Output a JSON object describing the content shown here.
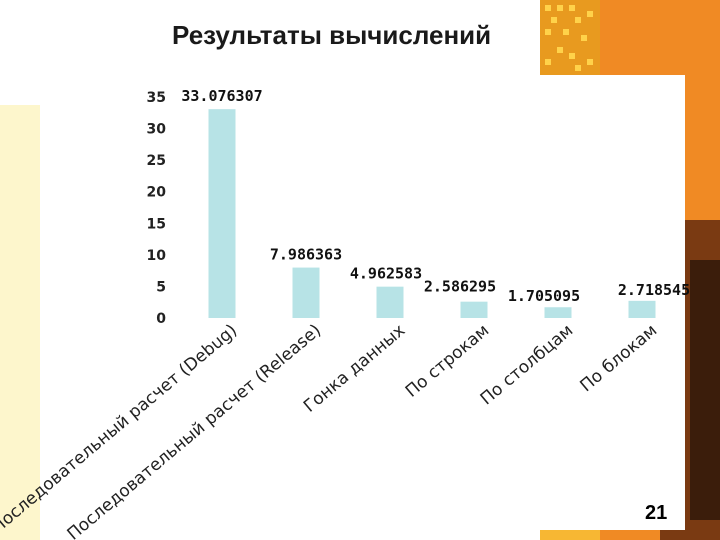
{
  "slide": {
    "title": "Результаты вычислений",
    "page_number": "21"
  },
  "colors": {
    "bar": "#b7e3e6",
    "accent_orange": "#f2a01e",
    "accent_yellow": "#ffd75a",
    "panel": "#fdf6cc"
  },
  "chart_data": {
    "type": "bar",
    "title": "",
    "xlabel": "",
    "ylabel": "",
    "ylim": [
      0,
      35
    ],
    "yticks": [
      0,
      5,
      10,
      15,
      20,
      25,
      30,
      35
    ],
    "grid": false,
    "legend": "none",
    "categories": [
      "Последовательный расчет (Debug)",
      "Последовательный расчет (Release)",
      "Гонка данных",
      "По строкам",
      "По столбцам",
      "По блокам"
    ],
    "values": [
      33.076307,
      7.986363,
      4.962583,
      2.586295,
      1.705095,
      2.718545
    ],
    "data_labels": [
      "33.076307",
      "7.986363",
      "4.962583",
      "2.586295",
      "1.705095",
      "2.718545"
    ]
  }
}
